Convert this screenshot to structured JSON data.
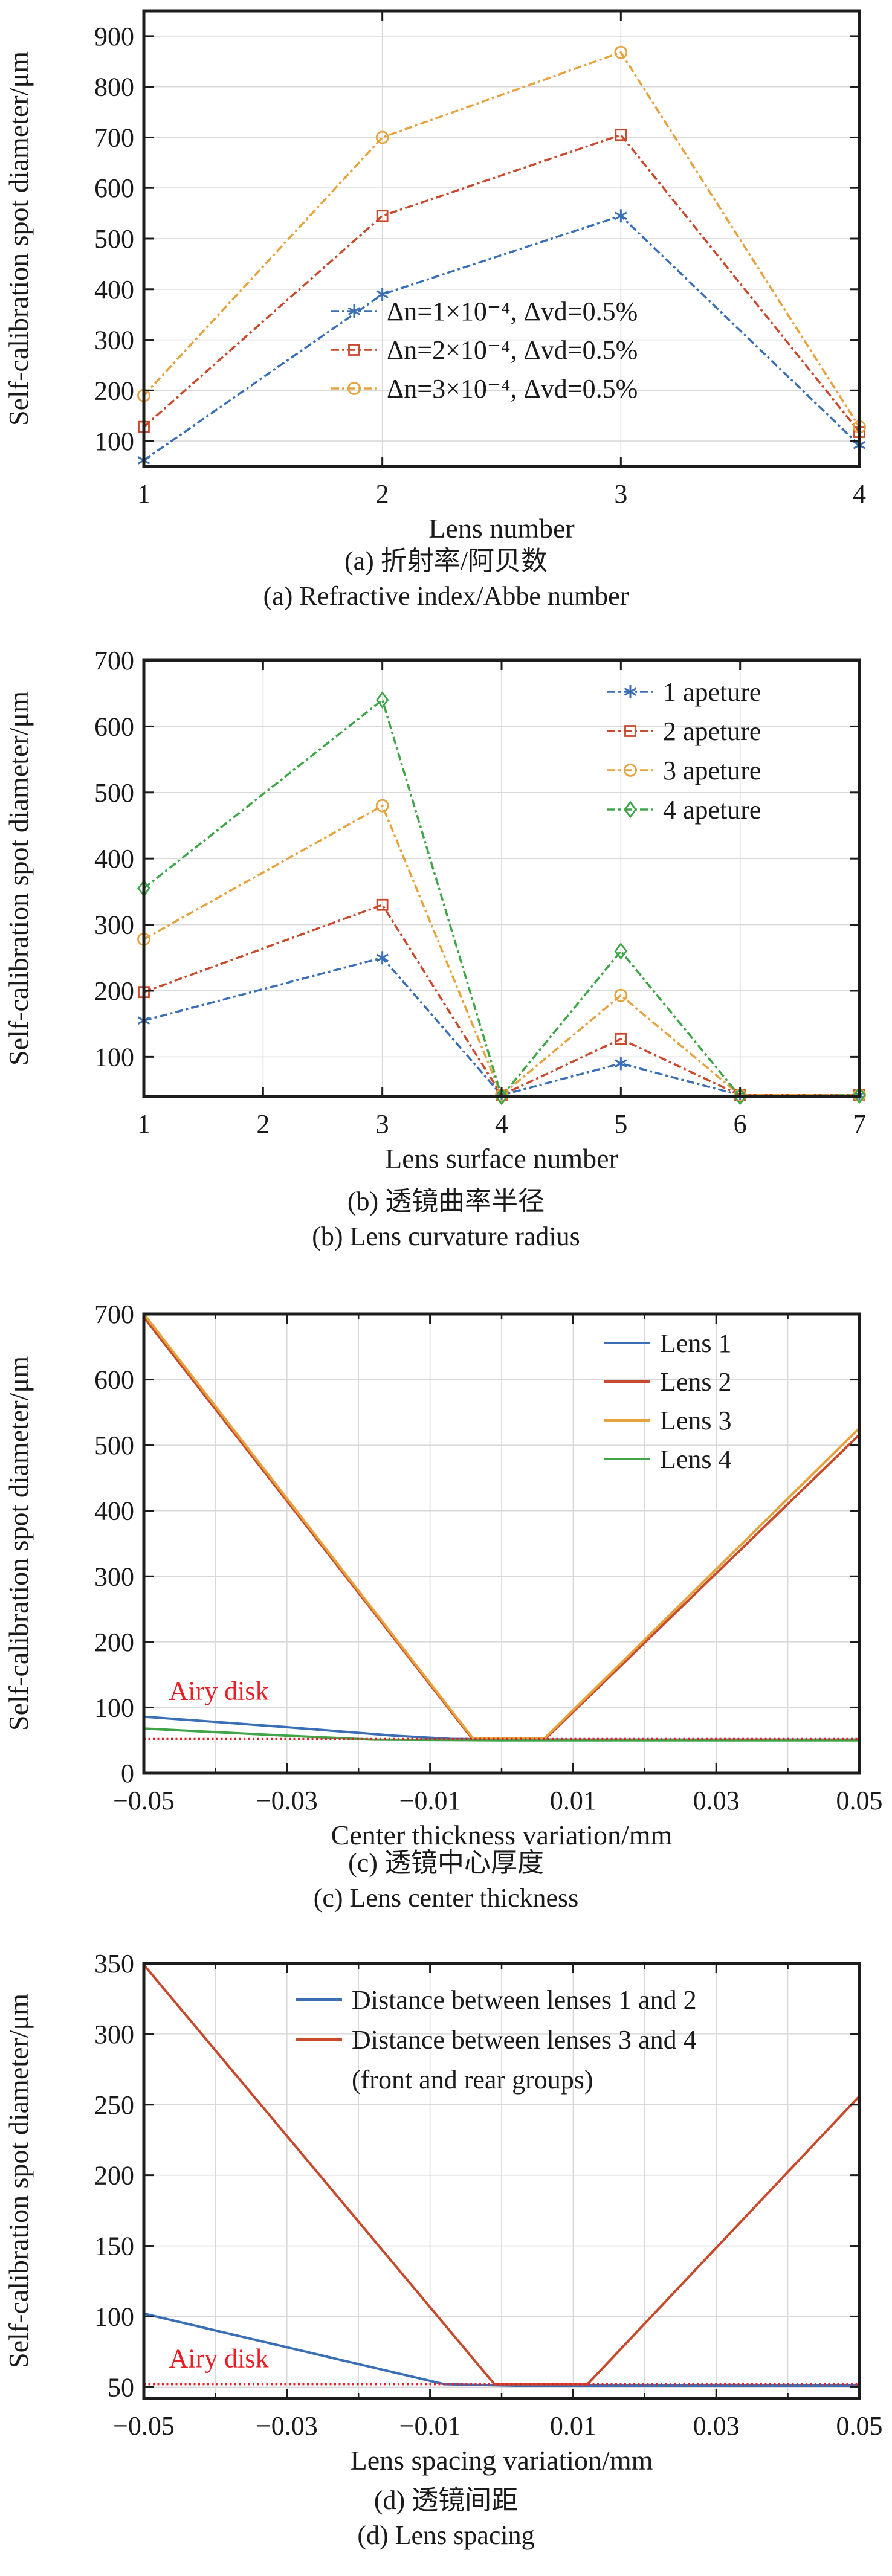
{
  "page": {
    "background": "#ffffff"
  },
  "chart_data": {
    "type": "line",
    "ylabel": "Self-calibration spot diameter/μm",
    "colors": {
      "blue": "#3a6fb5",
      "red": "#c9492c",
      "yellow": "#e6a33d",
      "green": "#3fa548",
      "airy": "#ea1c24",
      "grid": "#d9d9d9",
      "axis": "#1c1c1c",
      "text": "#1a1a1a"
    },
    "charts": [
      {
        "id": "a",
        "xlabel": "Lens number",
        "caption_zh": "(a) 折射率/阿贝数",
        "caption_en": "(a) Refractive index/Abbe number",
        "xlim": [
          1,
          4
        ],
        "ylim": [
          50,
          950
        ],
        "xticks": [
          1,
          2,
          3,
          4
        ],
        "xtick_labels": [
          "1",
          "2",
          "3",
          "4"
        ],
        "yticks": [
          100,
          200,
          300,
          400,
          500,
          600,
          700,
          800,
          900
        ],
        "xgrid": [
          2,
          3
        ],
        "xminor": [],
        "grid": true,
        "legend_position": "inside-center",
        "x": [
          1,
          2,
          3,
          4
        ],
        "series": [
          {
            "name": "Δn=1×10⁻⁴, Δvd=0.5%",
            "color": "blue",
            "marker": "star",
            "dashed": true,
            "y": [
              62,
              390,
              545,
              92
            ]
          },
          {
            "name": "Δn=2×10⁻⁴, Δvd=0.5%",
            "color": "red",
            "marker": "square",
            "dashed": true,
            "y": [
              128,
              545,
              705,
              118
            ]
          },
          {
            "name": "Δn=3×10⁻⁴, Δvd=0.5%",
            "color": "yellow",
            "marker": "circle",
            "dashed": true,
            "y": [
              190,
              700,
              868,
              128
            ]
          }
        ],
        "airy": null
      },
      {
        "id": "b",
        "xlabel": "Lens surface number",
        "caption_zh": "(b) 透镜曲率半径",
        "caption_en": "(b) Lens curvature radius",
        "xlim": [
          1,
          7
        ],
        "ylim": [
          40,
          700
        ],
        "xticks": [
          1,
          2,
          3,
          4,
          5,
          6,
          7
        ],
        "xtick_labels": [
          "1",
          "2",
          "3",
          "4",
          "5",
          "6",
          "7"
        ],
        "yticks": [
          100,
          200,
          300,
          400,
          500,
          600,
          700
        ],
        "xgrid": [
          2,
          3,
          4,
          5,
          6
        ],
        "xminor": [],
        "grid": true,
        "legend_position": "inside-top-right",
        "x": [
          1,
          3,
          4,
          5,
          6,
          7
        ],
        "series": [
          {
            "name": "1 apeture",
            "color": "blue",
            "marker": "star",
            "dashed": true,
            "y": [
              155,
              250,
              42,
              90,
              42,
              42
            ]
          },
          {
            "name": "2 apeture",
            "color": "red",
            "marker": "square",
            "dashed": true,
            "y": [
              198,
              330,
              42,
              127,
              42,
              42
            ]
          },
          {
            "name": "3 apeture",
            "color": "yellow",
            "marker": "circle",
            "dashed": true,
            "y": [
              278,
              480,
              42,
              193,
              42,
              42
            ]
          },
          {
            "name": "4 apeture",
            "color": "green",
            "marker": "diamond",
            "dashed": true,
            "y": [
              355,
              640,
              40,
              260,
              40,
              42
            ]
          }
        ],
        "airy": null
      },
      {
        "id": "c",
        "xlabel": "Center thickness variation/mm",
        "caption_zh": "(c) 透镜中心厚度",
        "caption_en": "(c) Lens center thickness",
        "xlim": [
          -0.05,
          0.05
        ],
        "ylim": [
          0,
          700
        ],
        "xticks": [
          -0.05,
          -0.03,
          -0.01,
          0.01,
          0.03,
          0.05
        ],
        "xtick_labels": [
          "−0.05",
          "−0.03",
          "−0.01",
          "0.01",
          "0.03",
          "0.05"
        ],
        "yticks": [
          0,
          100,
          200,
          300,
          400,
          500,
          600,
          700
        ],
        "xgrid": [
          -0.04,
          -0.03,
          -0.02,
          -0.01,
          0,
          0.01,
          0.02,
          0.03,
          0.04
        ],
        "xminor": [
          -0.04,
          -0.02,
          0,
          0.02,
          0.04
        ],
        "grid": true,
        "legend_position": "inside-top-right",
        "series": [
          {
            "name": "Lens 1",
            "color": "blue",
            "marker": null,
            "dashed": false,
            "pts": [
              [
                -0.05,
                86
              ],
              [
                -0.03,
                70
              ],
              [
                -0.015,
                57
              ],
              [
                -0.007,
                52
              ],
              [
                0.01,
                51
              ],
              [
                0.05,
                51
              ]
            ]
          },
          {
            "name": "Lens 2",
            "color": "red",
            "marker": null,
            "dashed": false,
            "pts": [
              [
                -0.05,
                695
              ],
              [
                -0.004,
                51
              ],
              [
                0.006,
                51
              ],
              [
                0.05,
                516
              ]
            ]
          },
          {
            "name": "Lens 3",
            "color": "yellow",
            "marker": null,
            "dashed": false,
            "pts": [
              [
                -0.05,
                700
              ],
              [
                -0.004,
                53
              ],
              [
                0.006,
                53
              ],
              [
                0.05,
                526
              ]
            ]
          },
          {
            "name": "Lens 4",
            "color": "green",
            "marker": null,
            "dashed": false,
            "pts": [
              [
                -0.05,
                68
              ],
              [
                -0.03,
                57
              ],
              [
                -0.018,
                51
              ],
              [
                0,
                50
              ],
              [
                0.05,
                50
              ]
            ]
          }
        ],
        "airy": {
          "y": 52,
          "label": "Airy disk",
          "label_x": -0.0465,
          "label_y": 112
        }
      },
      {
        "id": "d",
        "xlabel": "Lens spacing variation/mm",
        "caption_zh": "(d) 透镜间距",
        "caption_en": "(d) Lens spacing",
        "xlim": [
          -0.05,
          0.05
        ],
        "ylim": [
          42,
          350
        ],
        "xticks": [
          -0.05,
          -0.03,
          -0.01,
          0.01,
          0.03,
          0.05
        ],
        "xtick_labels": [
          "−0.05",
          "−0.03",
          "−0.01",
          "0.01",
          "0.03",
          "0.05"
        ],
        "yticks": [
          50,
          100,
          150,
          200,
          250,
          300,
          350
        ],
        "xgrid": [
          -0.04,
          -0.03,
          -0.02,
          -0.01,
          0,
          0.01,
          0.02,
          0.03,
          0.04
        ],
        "xminor": [
          -0.04,
          -0.02,
          0,
          0.02,
          0.04
        ],
        "grid": true,
        "legend_position": "inside-top-center",
        "series": [
          {
            "name": "Distance between lenses 1 and 2",
            "color": "blue",
            "marker": null,
            "dashed": false,
            "pts": [
              [
                -0.05,
                102
              ],
              [
                -0.008,
                52
              ],
              [
                0.002,
                51
              ],
              [
                0.05,
                51
              ]
            ]
          },
          {
            "name": [
              "Distance between lenses 3 and 4",
              "(front and rear groups)"
            ],
            "color": "red",
            "marker": null,
            "dashed": false,
            "pts": [
              [
                -0.05,
                349
              ],
              [
                -0.001,
                52
              ],
              [
                0.012,
                52
              ],
              [
                0.05,
                256
              ]
            ]
          }
        ],
        "airy": {
          "y": 52,
          "label": "Airy disk",
          "label_x": -0.0465,
          "label_y": 64
        }
      }
    ]
  }
}
